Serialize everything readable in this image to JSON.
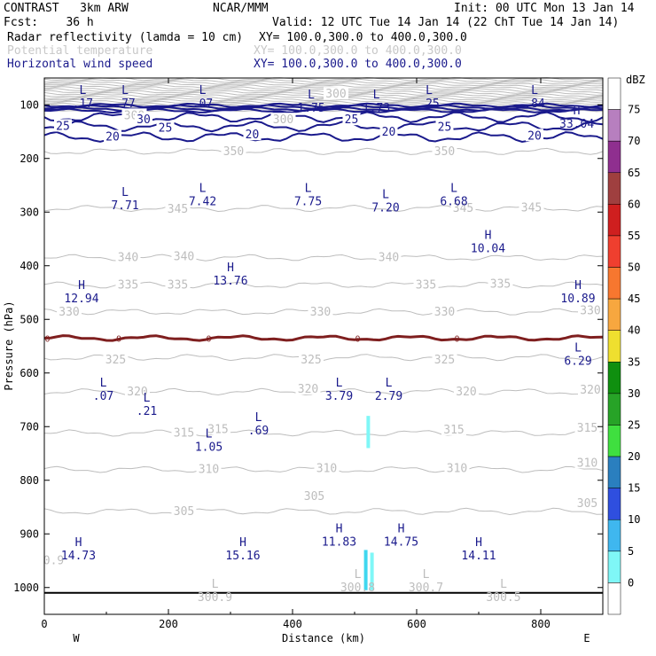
{
  "header": {
    "model": "CONTRAST   3km ARW",
    "org": "NCAR/MMM",
    "init": "Init: 00 UTC Mon 13 Jan 14",
    "fcst": "Fcst:    36 h",
    "valid": "Valid: 12 UTC Tue 14 Jan 14 (22 ChT Tue 14 Jan 14)",
    "fields": [
      {
        "name": "Radar reflectivity (lamda = 10 cm)",
        "xy": "XY= 100.0,300.0 to 400.0,300.0",
        "color": "#000000"
      },
      {
        "name": "Potential temperature",
        "xy": "XY= 100.0,300.0 to 400.0,300.0",
        "color": "#c8c8c8"
      },
      {
        "name": "Horizontal wind speed",
        "xy": "XY= 100.0,300.0 to 400.0,300.0",
        "color": "#1a1a8c"
      }
    ]
  },
  "chart_data": {
    "type": "cross-section",
    "xlabel": "Distance (km)",
    "ylabel": "Pressure (hPa)",
    "xlim": [
      0,
      900
    ],
    "ylim": [
      1050,
      50
    ],
    "x_ticks": [
      "0",
      "200",
      "400",
      "600",
      "800"
    ],
    "y_ticks": [
      "100",
      "200",
      "300",
      "400",
      "500",
      "600",
      "700",
      "800",
      "900",
      "1000"
    ],
    "west_label": "W",
    "east_label": "E",
    "colorbar": {
      "unit": "dBZ",
      "levels": [
        "0",
        "5",
        "10",
        "15",
        "20",
        "25",
        "30",
        "35",
        "40",
        "45",
        "50",
        "55",
        "60",
        "65",
        "70",
        "75"
      ],
      "colors": [
        "#ffffff",
        "#7ff7f7",
        "#3fb7ef",
        "#2f4fdf",
        "#2a7fbf",
        "#3fdf3f",
        "#27a327",
        "#0f8f0f",
        "#efdf2f",
        "#f7a73f",
        "#f7772f",
        "#ef3f2f",
        "#cf1f1f",
        "#9f3f3f",
        "#8f2f8f",
        "#b77fbf",
        "#ffffff"
      ]
    },
    "theta_contours": [
      {
        "label": "350",
        "p": 187
      },
      {
        "label": "345",
        "p": 293
      },
      {
        "label": "340",
        "p": 385
      },
      {
        "label": "335",
        "p": 436
      },
      {
        "label": "330",
        "p": 486
      },
      {
        "label": "325",
        "p": 571
      },
      {
        "label": "320",
        "p": 635
      },
      {
        "label": "315",
        "p": 712
      },
      {
        "label": "310",
        "p": 780
      },
      {
        "label": "305",
        "p": 858
      }
    ],
    "theta_labels": [
      {
        "text": "350",
        "x": 305,
        "p": 187
      },
      {
        "text": "350",
        "x": 645,
        "p": 187
      },
      {
        "text": "345",
        "x": 215,
        "p": 295
      },
      {
        "text": "345",
        "x": 675,
        "p": 293
      },
      {
        "text": "345",
        "x": 785,
        "p": 292
      },
      {
        "text": "340",
        "x": 135,
        "p": 385
      },
      {
        "text": "340",
        "x": 225,
        "p": 383
      },
      {
        "text": "340",
        "x": 555,
        "p": 385
      },
      {
        "text": "335",
        "x": 135,
        "p": 436
      },
      {
        "text": "335",
        "x": 215,
        "p": 436
      },
      {
        "text": "335",
        "x": 615,
        "p": 436
      },
      {
        "text": "335",
        "x": 735,
        "p": 434
      },
      {
        "text": "330",
        "x": 40,
        "p": 486
      },
      {
        "text": "330",
        "x": 445,
        "p": 486
      },
      {
        "text": "330",
        "x": 645,
        "p": 486
      },
      {
        "text": "330",
        "x": 880,
        "p": 484
      },
      {
        "text": "325",
        "x": 115,
        "p": 576
      },
      {
        "text": "325",
        "x": 430,
        "p": 576
      },
      {
        "text": "325",
        "x": 645,
        "p": 576
      },
      {
        "text": "320",
        "x": 150,
        "p": 635
      },
      {
        "text": "320",
        "x": 425,
        "p": 630
      },
      {
        "text": "320",
        "x": 680,
        "p": 635
      },
      {
        "text": "320",
        "x": 880,
        "p": 632
      },
      {
        "text": "315",
        "x": 225,
        "p": 712
      },
      {
        "text": "315",
        "x": 280,
        "p": 705
      },
      {
        "text": "315",
        "x": 660,
        "p": 706
      },
      {
        "text": "315",
        "x": 875,
        "p": 703
      },
      {
        "text": "310",
        "x": 265,
        "p": 780
      },
      {
        "text": "310",
        "x": 455,
        "p": 778
      },
      {
        "text": "310",
        "x": 665,
        "p": 778
      },
      {
        "text": "310",
        "x": 875,
        "p": 768
      },
      {
        "text": "305",
        "x": 225,
        "p": 858
      },
      {
        "text": "305",
        "x": 435,
        "p": 830
      },
      {
        "text": "305",
        "x": 875,
        "p": 843
      },
      {
        "text": "300",
        "x": 470,
        "p": 80
      },
      {
        "text": "300",
        "x": 145,
        "p": 120
      },
      {
        "text": "300",
        "x": 385,
        "p": 128
      },
      {
        "text": "0.9",
        "x": 15,
        "p": 950
      }
    ],
    "wind_contours": [
      {
        "label": "30",
        "p": 123
      },
      {
        "label": "25",
        "p": 140
      },
      {
        "label": "20",
        "p": 160
      }
    ],
    "wind_labels": [
      {
        "text": "30",
        "x": 160,
        "p": 128
      },
      {
        "text": "25",
        "x": 30,
        "p": 140
      },
      {
        "text": "25",
        "x": 195,
        "p": 143
      },
      {
        "text": "25",
        "x": 495,
        "p": 128
      },
      {
        "text": "25",
        "x": 645,
        "p": 142
      },
      {
        "text": "20",
        "x": 110,
        "p": 160
      },
      {
        "text": "20",
        "x": 335,
        "p": 156
      },
      {
        "text": "20",
        "x": 555,
        "p": 151
      },
      {
        "text": "20",
        "x": 790,
        "p": 158
      }
    ],
    "freezing_level": {
      "label": "0",
      "p": 535,
      "label_x": [
        5,
        120,
        265,
        505,
        665
      ]
    },
    "extrema_upper": [
      {
        "type": "L",
        "value": ".17",
        "x": 62,
        "p": 80
      },
      {
        "type": "L",
        "value": ".77",
        "x": 130,
        "p": 80
      },
      {
        "type": "L",
        "value": ".07",
        "x": 255,
        "p": 80
      },
      {
        "type": "L",
        "value": "1.75",
        "x": 430,
        "p": 88
      },
      {
        "type": "L",
        "value": "1.73",
        "x": 535,
        "p": 88
      },
      {
        "type": "L",
        "value": ".25",
        "x": 620,
        "p": 80
      },
      {
        "type": "L",
        "value": ".84",
        "x": 790,
        "p": 80
      },
      {
        "type": "H",
        "value": "33.04",
        "x": 858,
        "p": 118
      }
    ],
    "extrema": [
      {
        "type": "L",
        "value": "7.71",
        "x": 130,
        "p": 270
      },
      {
        "type": "L",
        "value": "7.42",
        "x": 255,
        "p": 262
      },
      {
        "type": "L",
        "value": "7.75",
        "x": 425,
        "p": 262
      },
      {
        "type": "L",
        "value": "7.20",
        "x": 550,
        "p": 274
      },
      {
        "type": "L",
        "value": "6.68",
        "x": 660,
        "p": 262
      },
      {
        "type": "H",
        "value": "10.04",
        "x": 715,
        "p": 350
      },
      {
        "type": "H",
        "value": "13.76",
        "x": 300,
        "p": 410
      },
      {
        "type": "H",
        "value": "12.94",
        "x": 60,
        "p": 443
      },
      {
        "type": "H",
        "value": "10.89",
        "x": 860,
        "p": 443
      },
      {
        "type": "L",
        "value": "6.29",
        "x": 860,
        "p": 560
      },
      {
        "type": "L",
        "value": ".07",
        "x": 95,
        "p": 625
      },
      {
        "type": "L",
        "value": ".21",
        "x": 165,
        "p": 653
      },
      {
        "type": "L",
        "value": "3.79",
        "x": 475,
        "p": 625
      },
      {
        "type": "L",
        "value": "2.79",
        "x": 555,
        "p": 625
      },
      {
        "type": "L",
        "value": ".69",
        "x": 345,
        "p": 690
      },
      {
        "type": "L",
        "value": "1.05",
        "x": 265,
        "p": 720
      },
      {
        "type": "H",
        "value": "11.83",
        "x": 475,
        "p": 897
      },
      {
        "type": "H",
        "value": "14.75",
        "x": 575,
        "p": 897
      },
      {
        "type": "H",
        "value": "14.73",
        "x": 55,
        "p": 923
      },
      {
        "type": "H",
        "value": "15.16",
        "x": 320,
        "p": 923
      },
      {
        "type": "H",
        "value": "14.11",
        "x": 700,
        "p": 923
      }
    ],
    "extrema_theta": [
      {
        "type": "L",
        "value": "300.8",
        "x": 505,
        "p": 982
      },
      {
        "type": "L",
        "value": "300.7",
        "x": 615,
        "p": 982
      },
      {
        "type": "L",
        "value": "300.9",
        "x": 275,
        "p": 1000
      },
      {
        "type": "L",
        "value": "300.5",
        "x": 740,
        "p": 1000
      }
    ],
    "reflectivity_cells": [
      {
        "x": 518,
        "p_top": 930,
        "p_bot": 1005,
        "dbz": 10
      },
      {
        "x": 522,
        "p_top": 680,
        "p_bot": 740,
        "dbz": 5
      },
      {
        "x": 528,
        "p_top": 935,
        "p_bot": 1005,
        "dbz": 5
      }
    ],
    "surface_p": 1010
  }
}
